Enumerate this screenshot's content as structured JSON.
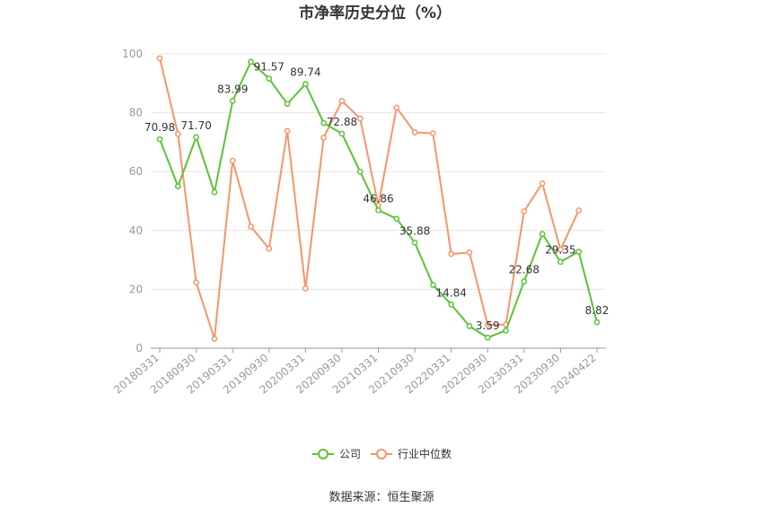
{
  "chart_data": {
    "type": "line",
    "title": "市净率历史分位（%）",
    "source": "数据来源：恒生聚源",
    "ylim": [
      0,
      100
    ],
    "yticks": [
      "0",
      "20",
      "40",
      "60",
      "80",
      "100"
    ],
    "x_tick_labels": [
      "20180331",
      "20180930",
      "20190331",
      "20190930",
      "20200331",
      "20200930",
      "20210331",
      "20210930",
      "20220331",
      "20220930",
      "20230331",
      "20230930",
      "20240422"
    ],
    "x": [
      "20180331",
      "20180630",
      "20180930",
      "20181231",
      "20190331",
      "20190630",
      "20190930",
      "20191231",
      "20200331",
      "20200630",
      "20200930",
      "20201231",
      "20210331",
      "20210630",
      "20210930",
      "20211231",
      "20220331",
      "20220630",
      "20220930",
      "20221231",
      "20230331",
      "20230630",
      "20230930",
      "20231231",
      "20240422"
    ],
    "series": [
      {
        "name": "公司",
        "color": "#5ac335",
        "values": [
          70.98,
          55,
          71.7,
          53,
          83.99,
          97.3,
          91.57,
          83,
          89.74,
          76.5,
          72.88,
          60,
          46.86,
          44,
          35.88,
          21.5,
          14.84,
          7.5,
          3.59,
          6,
          22.68,
          38.8,
          29.35,
          32.8,
          8.82
        ],
        "labeled_points": {
          "0": "70.98",
          "2": "71.70",
          "4": "83.99",
          "6": "91.57",
          "8": "89.74",
          "10": "72.88",
          "12": "46.86",
          "14": "35.88",
          "16": "14.84",
          "18": "3.59",
          "20": "22.68",
          "22": "29.35",
          "24": "8.82"
        }
      },
      {
        "name": "行业中位数",
        "color": "#f5956a",
        "values": [
          98.5,
          72.8,
          22.3,
          3.2,
          63.7,
          41.3,
          33.8,
          73.8,
          20.3,
          71.5,
          84,
          78,
          48.5,
          81.7,
          73.3,
          73,
          32,
          32.5,
          8,
          8,
          46.5,
          56,
          33.5,
          46.8,
          null
        ]
      }
    ],
    "legend_position": "bottom",
    "grid": "horizontal"
  }
}
